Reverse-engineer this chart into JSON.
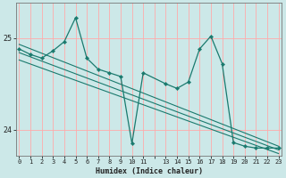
{
  "xlabel": "Humidex (Indice chaleur)",
  "bg_color": "#cce8e8",
  "grid_color": "#ffaaaa",
  "line_color": "#1a7a6e",
  "ylim": [
    23.72,
    25.38
  ],
  "yticks": [
    24,
    25
  ],
  "xlim": [
    -0.3,
    23.3
  ],
  "series1_x": [
    0,
    1,
    2,
    3,
    4,
    5,
    6,
    7,
    8,
    9,
    10,
    11,
    13,
    14,
    15,
    16,
    17,
    18,
    19,
    20,
    21,
    22,
    23
  ],
  "series1_y": [
    24.88,
    24.82,
    24.78,
    24.86,
    24.96,
    25.22,
    24.78,
    24.66,
    24.62,
    24.58,
    23.85,
    24.62,
    24.5,
    24.45,
    24.52,
    24.88,
    25.02,
    24.72,
    23.86,
    23.82,
    23.8,
    23.8,
    23.8
  ],
  "trend1_x": [
    0,
    23
  ],
  "trend1_y": [
    24.93,
    23.82
  ],
  "trend2_x": [
    0,
    23
  ],
  "trend2_y": [
    24.84,
    23.78
  ],
  "trend3_x": [
    0,
    23
  ],
  "trend3_y": [
    24.76,
    23.74
  ],
  "x_labels": [
    "0",
    "1",
    "2",
    "3",
    "4",
    "5",
    "6",
    "7",
    "8",
    "9",
    "10",
    "11",
    "",
    "13",
    "14",
    "15",
    "16",
    "17",
    "18",
    "19",
    "20",
    "21",
    "22",
    "23"
  ]
}
